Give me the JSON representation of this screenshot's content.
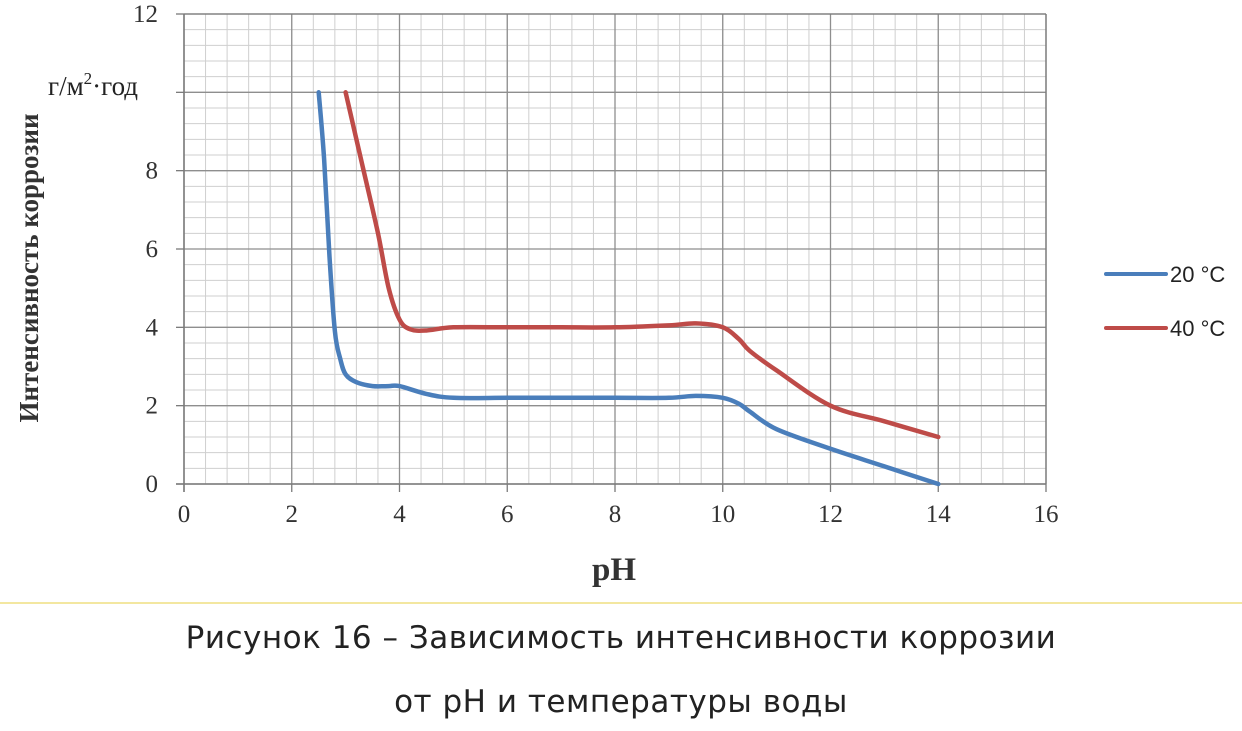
{
  "chart_data": {
    "type": "line",
    "xlabel": "pH",
    "ylabel": "Интенсивность коррозии",
    "unit_label": {
      "base": "г/м",
      "sup": "2",
      "rest": "·год"
    },
    "xlim": [
      0,
      16
    ],
    "ylim": [
      0,
      12
    ],
    "x_ticks": [
      0,
      2,
      4,
      6,
      8,
      10,
      12,
      14,
      16
    ],
    "y_ticks": [
      0,
      2,
      4,
      6,
      8,
      12
    ],
    "grid": true,
    "legend_position": "right",
    "series": [
      {
        "name": "20 °C",
        "color": "#4a7ebb",
        "x": [
          2.5,
          2.6,
          2.7,
          2.8,
          2.9,
          3.0,
          3.2,
          3.5,
          3.8,
          4.0,
          4.5,
          5.0,
          6.0,
          7.0,
          8.0,
          9.0,
          9.5,
          10.0,
          10.3,
          10.5,
          11.0,
          12.0,
          13.0,
          14.0
        ],
        "y": [
          10,
          8.3,
          5.8,
          3.9,
          3.2,
          2.8,
          2.6,
          2.5,
          2.5,
          2.5,
          2.3,
          2.2,
          2.2,
          2.2,
          2.2,
          2.2,
          2.25,
          2.2,
          2.05,
          1.85,
          1.4,
          0.9,
          0.45,
          0.0
        ]
      },
      {
        "name": "40 °C",
        "color": "#be4b48",
        "x": [
          3.0,
          3.3,
          3.6,
          3.8,
          4.0,
          4.2,
          4.5,
          5.0,
          6.0,
          7.0,
          8.0,
          9.0,
          9.5,
          10.0,
          10.3,
          10.5,
          11.0,
          12.0,
          13.0,
          14.0
        ],
        "y": [
          10,
          8.2,
          6.4,
          5.0,
          4.2,
          3.95,
          3.92,
          4.0,
          4.0,
          4.0,
          4.0,
          4.05,
          4.1,
          4.0,
          3.7,
          3.4,
          2.9,
          2.0,
          1.6,
          1.2
        ]
      }
    ]
  },
  "caption": {
    "line1": "Рисунок 16 – Зависимость интенсивности коррозии",
    "line2": "от pH и температуры воды"
  }
}
